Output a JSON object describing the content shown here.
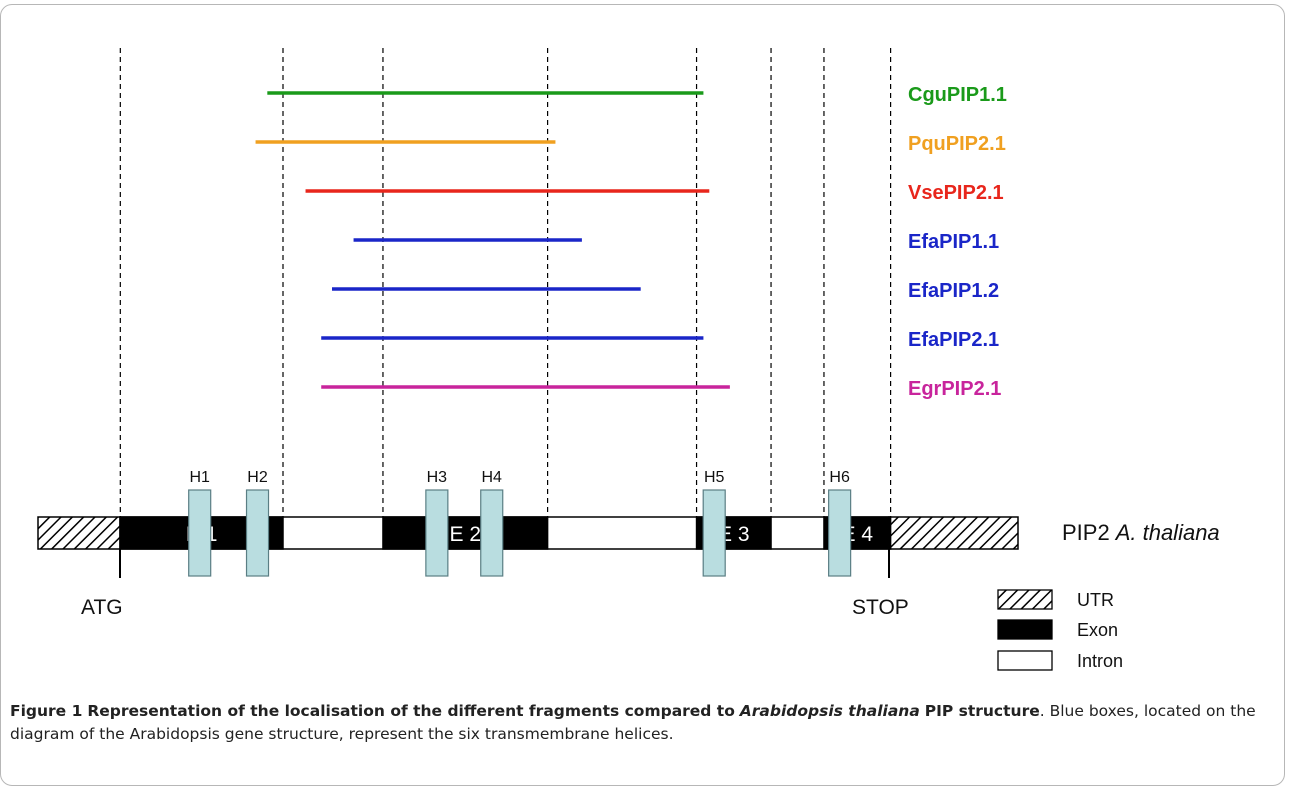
{
  "fragments": [
    {
      "name": "CguPIP1.1",
      "color": "#1a9a1a",
      "start": 0.234,
      "end": 0.679
    },
    {
      "name": "PquPIP2.1",
      "color": "#f0a020",
      "start": 0.222,
      "end": 0.528
    },
    {
      "name": "VsePIP2.1",
      "color": "#e8261c",
      "start": 0.273,
      "end": 0.685
    },
    {
      "name": "EfaPIP1.1",
      "color": "#1a26c8",
      "start": 0.322,
      "end": 0.555
    },
    {
      "name": "EfaPIP1.2",
      "color": "#1a26c8",
      "start": 0.3,
      "end": 0.615
    },
    {
      "name": "EfaPIP2.1",
      "color": "#1a26c8",
      "start": 0.289,
      "end": 0.679
    },
    {
      "name": "EgrPIP2.1",
      "color": "#c8249c",
      "start": 0.289,
      "end": 0.706
    }
  ],
  "gene": {
    "label_prefix": "PIP2",
    "label_species": "A. thaliana",
    "atg_label": "ATG",
    "stop_label": "STOP",
    "exons": [
      {
        "label": "E 1",
        "start": 0.084,
        "end": 0.25
      },
      {
        "label": "E 2",
        "start": 0.352,
        "end": 0.52
      },
      {
        "label": "E 3",
        "start": 0.672,
        "end": 0.748
      },
      {
        "label": "E 4",
        "start": 0.802,
        "end": 0.87
      }
    ],
    "helices": [
      {
        "label": "H1",
        "pos": 0.165
      },
      {
        "label": "H2",
        "pos": 0.224
      },
      {
        "label": "H3",
        "pos": 0.407
      },
      {
        "label": "H4",
        "pos": 0.463
      },
      {
        "label": "H5",
        "pos": 0.69
      },
      {
        "label": "H6",
        "pos": 0.818
      }
    ]
  },
  "legend": {
    "utr": "UTR",
    "exon": "Exon",
    "intron": "Intron"
  },
  "caption": {
    "figure_label": "Figure 1",
    "title_part1": "Representation of the localisation of the different fragments compared to",
    "title_italic": "Arabidopsis thaliana",
    "title_part2": "PIP structure",
    "body": ". Blue boxes, located on the diagram of the Arabidopsis gene structure, represent the six transmembrane helices."
  }
}
